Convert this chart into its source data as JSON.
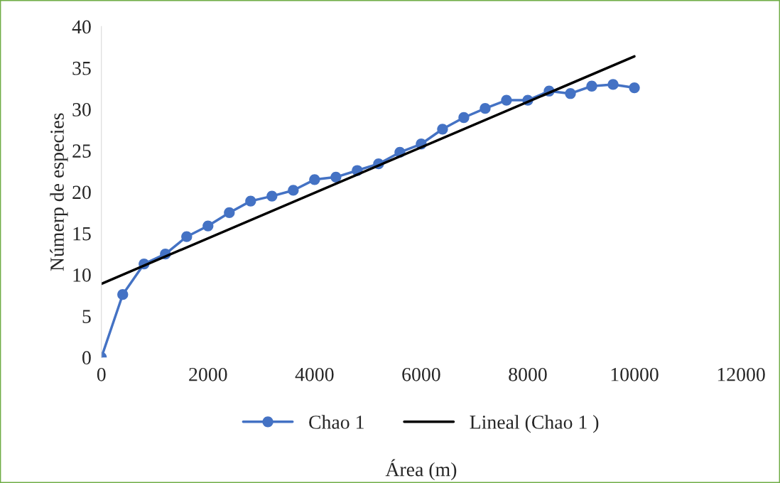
{
  "chart_data": {
    "type": "line",
    "xlabel": "Área (m)",
    "ylabel": "Númerp de especies",
    "xlim": [
      0,
      12000
    ],
    "xticks": [
      0,
      2000,
      4000,
      6000,
      8000,
      10000,
      12000
    ],
    "ylim": [
      0,
      40
    ],
    "yticks": [
      0,
      5,
      10,
      15,
      20,
      25,
      30,
      35,
      40
    ],
    "grid": false,
    "legend": "bottom",
    "series": [
      {
        "name": "Chao 1",
        "color": "#4472c4",
        "marker": "circle",
        "x": [
          0,
          400,
          800,
          1200,
          1600,
          2000,
          2400,
          2800,
          3200,
          3600,
          4000,
          4400,
          4800,
          5200,
          5600,
          6000,
          6400,
          6800,
          7200,
          7600,
          8000,
          8400,
          8800,
          9200,
          9600,
          10000
        ],
        "values": [
          0,
          7.6,
          11.3,
          12.5,
          14.6,
          15.9,
          17.5,
          18.9,
          19.5,
          20.2,
          21.5,
          21.8,
          22.6,
          23.4,
          24.8,
          25.8,
          27.6,
          29.0,
          30.1,
          31.1,
          31.1,
          32.2,
          31.9,
          32.8,
          33.0,
          32.6
        ]
      },
      {
        "name": "Lineal (Chao 1 )",
        "type": "line",
        "color": "#000000",
        "marker": "none",
        "x": [
          0,
          10000
        ],
        "values": [
          8.9,
          36.4
        ]
      }
    ]
  }
}
